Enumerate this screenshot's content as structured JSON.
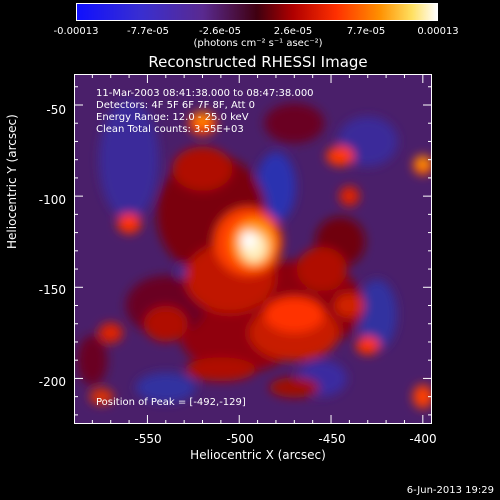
{
  "colorbar": {
    "ticks": [
      "-0.00013",
      "-7.7e-05",
      "-2.6e-05",
      "2.6e-05",
      "7.7e-05",
      "0.00013"
    ],
    "units": "(photons cm⁻² s⁻¹ asec⁻²)"
  },
  "chart_data": {
    "type": "heatmap",
    "title": "Reconstructed RHESSI Image",
    "xlabel": "Heliocentric X (arcsec)",
    "ylabel": "Heliocentric Y (arcsec)",
    "xlim": [
      -590,
      -395
    ],
    "ylim": [
      -225,
      -33
    ],
    "xticks": [
      "-550",
      "-500",
      "-450",
      "-400"
    ],
    "xtick_values": [
      -550,
      -500,
      -450,
      -400
    ],
    "yticks": [
      "-50",
      "-100",
      "-150",
      "-200"
    ],
    "ytick_values": [
      -50,
      -100,
      -150,
      -200
    ],
    "colorbar_range": [
      -0.00013,
      0.00013
    ],
    "peak": [
      -492,
      -129
    ],
    "annotations": {
      "time": "11-Mar-2003 08:41:38.000 to 08:47:38.000",
      "detectors": "Detectors: 4F 5F 6F 7F 8F, Att 0",
      "energy": "Energy Range: 12.0 - 25.0 keV",
      "clean": "Clean     Total counts: 3.55E+03",
      "peak_label": "Position of Peak = [-492,-129]"
    }
  },
  "footer": {
    "date": "6-Jun-2013 19:29"
  }
}
